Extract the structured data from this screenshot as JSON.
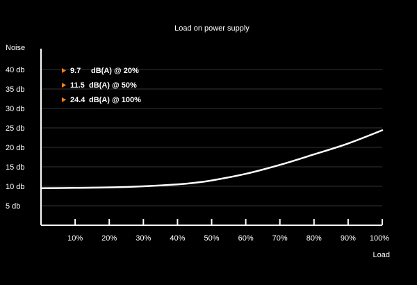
{
  "chart_data": {
    "type": "line",
    "title": "Load on power supply",
    "xlabel": "Load",
    "ylabel": "Noise",
    "x_ticks": [
      "10%",
      "20%",
      "30%",
      "40%",
      "50%",
      "60%",
      "70%",
      "80%",
      "90%",
      "100%"
    ],
    "y_ticks": [
      "5 db",
      "10 db",
      "15 db",
      "20 db",
      "25 db",
      "30 db",
      "35 db",
      "40 db"
    ],
    "xlim": [
      0,
      100
    ],
    "ylim": [
      0,
      45
    ],
    "grid": "horizontal",
    "series": [
      {
        "x": [
          0,
          10,
          20,
          30,
          40,
          45,
          50,
          60,
          70,
          80,
          90,
          100
        ],
        "y": [
          9.5,
          9.6,
          9.7,
          10.0,
          10.5,
          10.9,
          11.5,
          13.2,
          15.5,
          18.2,
          21.0,
          24.4
        ]
      }
    ],
    "annotations": [
      {
        "value": "9.7",
        "text": "dB(A) @ 20%"
      },
      {
        "value": "11.5",
        "text": "dB(A) @ 50%"
      },
      {
        "value": "24.4",
        "text": "dB(A) @ 100%"
      }
    ],
    "colors": {
      "background": "#000000",
      "line": "#ffffff",
      "grid": "#333333",
      "marker": "#e8832a"
    }
  }
}
